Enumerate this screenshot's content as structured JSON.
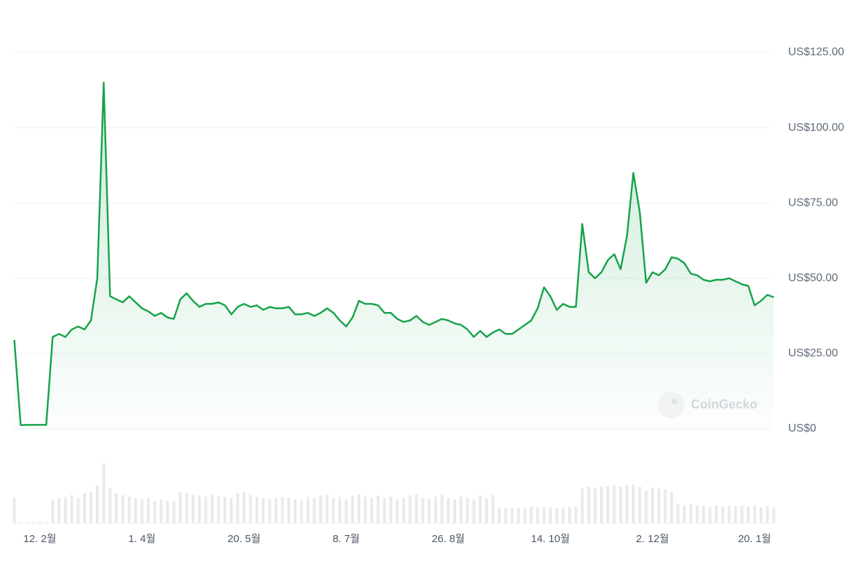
{
  "chart_data": {
    "type": "line",
    "color": "#16a34a",
    "grid": true,
    "watermark": "CoinGecko",
    "categories": [
      null,
      null,
      null,
      null,
      "12. 2월",
      null,
      null,
      null,
      null,
      null,
      null,
      null,
      null,
      null,
      null,
      null,
      null,
      null,
      null,
      null,
      "1. 4월",
      null,
      null,
      null,
      null,
      null,
      null,
      null,
      null,
      null,
      null,
      null,
      null,
      null,
      null,
      null,
      "20. 5월",
      null,
      null,
      null,
      null,
      null,
      null,
      null,
      null,
      null,
      null,
      null,
      null,
      null,
      null,
      null,
      "8. 7월",
      null,
      null,
      null,
      null,
      null,
      null,
      null,
      null,
      null,
      null,
      null,
      null,
      null,
      null,
      null,
      "26. 8월",
      null,
      null,
      null,
      null,
      null,
      null,
      null,
      null,
      null,
      null,
      null,
      null,
      null,
      null,
      null,
      "14. 10월",
      null,
      null,
      null,
      null,
      null,
      null,
      null,
      null,
      null,
      null,
      null,
      null,
      null,
      null,
      null,
      "2. 12월",
      null,
      null,
      null,
      null,
      null,
      null,
      null,
      null,
      null,
      null,
      null,
      null,
      null,
      null,
      null,
      "20. 1월",
      null,
      null,
      null
    ],
    "values": [
      29.5,
      1.2,
      1.3,
      1.3,
      1.3,
      1.3,
      30.5,
      31.5,
      30.5,
      33,
      34,
      33,
      36,
      50,
      115,
      44,
      43,
      42,
      44,
      42,
      40,
      39,
      37.5,
      38.5,
      37,
      36.5,
      43,
      45,
      42.5,
      40.5,
      41.5,
      41.5,
      42,
      41,
      38,
      40.5,
      41.5,
      40.5,
      41,
      39.5,
      40.5,
      40,
      40,
      40.5,
      38,
      38,
      38.5,
      37.5,
      38.5,
      40,
      38.5,
      36,
      34,
      37,
      42.5,
      41.5,
      41.5,
      41,
      38.5,
      38.5,
      36.5,
      35.5,
      36,
      37.5,
      35.5,
      34.5,
      35.5,
      36.5,
      36,
      35,
      34.5,
      33,
      30.5,
      32.5,
      30.5,
      32,
      33,
      31.5,
      31.5,
      33,
      34.5,
      36,
      40,
      47,
      44,
      39.5,
      41.5,
      40.5,
      40.5,
      68,
      52,
      50,
      52,
      56,
      58,
      53,
      64,
      85,
      72,
      48.5,
      52,
      51,
      53,
      57,
      56.5,
      55,
      51.5,
      51,
      49.5,
      49,
      49.5,
      49.5,
      50,
      49,
      48,
      47.5,
      41,
      42.5,
      44.5,
      43.7
    ],
    "volumes": [
      40,
      2,
      2,
      2,
      2,
      2,
      38,
      40,
      42,
      45,
      40,
      48,
      50,
      60,
      95,
      55,
      48,
      45,
      42,
      40,
      38,
      40,
      35,
      38,
      36,
      35,
      50,
      48,
      45,
      44,
      42,
      45,
      43,
      42,
      40,
      48,
      50,
      45,
      42,
      40,
      38,
      40,
      42,
      40,
      38,
      36,
      42,
      40,
      44,
      45,
      40,
      42,
      38,
      44,
      46,
      42,
      40,
      44,
      40,
      42,
      38,
      40,
      44,
      46,
      40,
      38,
      42,
      45,
      40,
      38,
      42,
      40,
      38,
      44,
      40,
      45,
      25,
      25,
      24,
      25,
      25,
      26,
      25,
      26,
      25,
      24,
      25,
      26,
      26,
      55,
      58,
      56,
      58,
      60,
      60,
      58,
      60,
      62,
      58,
      52,
      56,
      55,
      54,
      50,
      30,
      28,
      30,
      28,
      27,
      26,
      28,
      27,
      28,
      27,
      28,
      26,
      28,
      25,
      27,
      24
    ],
    "ylim": [
      0,
      125
    ],
    "yticks": [
      {
        "value": 0,
        "label": "US$0"
      },
      {
        "value": 25,
        "label": "US$25.00"
      },
      {
        "value": 50,
        "label": "US$50.00"
      },
      {
        "value": 75,
        "label": "US$75.00"
      },
      {
        "value": 100,
        "label": "US$100.00"
      },
      {
        "value": 125,
        "label": "US$125.00"
      }
    ]
  }
}
